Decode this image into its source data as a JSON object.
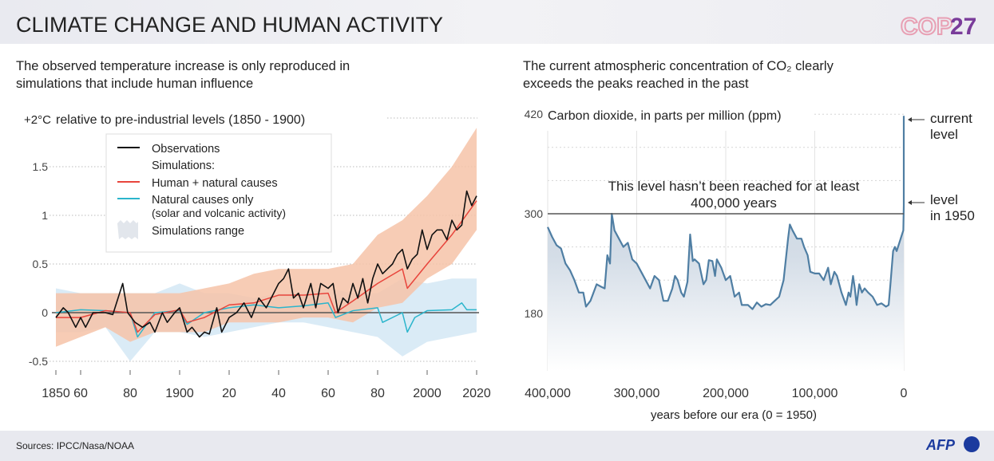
{
  "header": {
    "title": "CLIMATE CHANGE AND HUMAN ACTIVITY",
    "logo_text": "COP27",
    "logo_part1": "COP",
    "logo_part2": "27"
  },
  "footer": {
    "sources": "Sources: IPCC/Nasa/NOAA",
    "agency_logo": "AFP"
  },
  "colors": {
    "observations": "#111111",
    "human_natural": "#e8453c",
    "natural_only": "#2bb5cc",
    "human_natural_range": "#f6c3a8",
    "natural_range": "#d6e9f5",
    "co2_line": "#4f7ea3",
    "cop_purple": "#7a3c9a"
  },
  "chart_data": [
    {
      "type": "line",
      "subtitle_line1": "The observed temperature increase is only reproduced in",
      "subtitle_line2": "simulations that include human influence",
      "ylabel_unit": "+2°C",
      "ylabel": "relative to pre-industrial levels (1850 - 1900)",
      "xlim": [
        1850,
        2020
      ],
      "ylim": [
        -0.5,
        2
      ],
      "grid": true,
      "legend_position": "top-left",
      "x_ticks": [
        1850,
        1860,
        1880,
        1900,
        1920,
        1940,
        1960,
        1980,
        2000,
        2020
      ],
      "x_tick_labels": [
        "1850",
        "60",
        "80",
        "1900",
        "20",
        "40",
        "60",
        "80",
        "2000",
        "2020"
      ],
      "y_ticks": [
        -0.5,
        0,
        0.5,
        1,
        1.5
      ],
      "y_tick_labels": [
        "-0.5",
        "0",
        "0.5",
        "1",
        "1.5"
      ],
      "legend": {
        "observations": "Observations",
        "simulations_header": "Simulations:",
        "human_natural": "Human + natural causes",
        "natural_only": "Natural causes only",
        "natural_only_note": "(solar and volcanic activity)",
        "range": "Simulations range"
      },
      "series": [
        {
          "name": "Observations",
          "x": [
            1850,
            1853,
            1855,
            1858,
            1860,
            1862,
            1865,
            1868,
            1870,
            1873,
            1877,
            1879,
            1882,
            1885,
            1888,
            1890,
            1893,
            1895,
            1898,
            1900,
            1903,
            1905,
            1908,
            1910,
            1912,
            1915,
            1917,
            1920,
            1923,
            1926,
            1929,
            1932,
            1935,
            1938,
            1940,
            1942,
            1944,
            1946,
            1948,
            1950,
            1953,
            1955,
            1957,
            1960,
            1962,
            1964,
            1966,
            1968,
            1970,
            1972,
            1974,
            1976,
            1978,
            1980,
            1982,
            1984,
            1986,
            1988,
            1990,
            1992,
            1994,
            1996,
            1998,
            2000,
            2002,
            2004,
            2006,
            2008,
            2010,
            2012,
            2014,
            2016,
            2018,
            2020
          ],
          "values": [
            -0.05,
            0.05,
            0.0,
            -0.15,
            -0.05,
            -0.15,
            0.0,
            0.0,
            0.0,
            -0.02,
            0.3,
            0.0,
            -0.1,
            -0.15,
            -0.1,
            -0.2,
            0.0,
            -0.1,
            0.0,
            0.05,
            -0.2,
            -0.15,
            -0.25,
            -0.2,
            -0.22,
            0.05,
            -0.2,
            -0.05,
            0.0,
            0.1,
            -0.05,
            0.15,
            0.05,
            0.2,
            0.3,
            0.35,
            0.45,
            0.15,
            0.2,
            0.05,
            0.3,
            0.05,
            0.3,
            0.25,
            0.3,
            0.0,
            0.15,
            0.1,
            0.3,
            0.15,
            0.35,
            0.1,
            0.35,
            0.5,
            0.4,
            0.45,
            0.5,
            0.6,
            0.65,
            0.45,
            0.55,
            0.6,
            0.85,
            0.65,
            0.8,
            0.85,
            0.85,
            0.75,
            0.95,
            0.85,
            0.9,
            1.25,
            1.1,
            1.2
          ]
        },
        {
          "name": "Human + natural causes",
          "x": [
            1850,
            1860,
            1870,
            1880,
            1883,
            1890,
            1900,
            1903,
            1910,
            1920,
            1930,
            1940,
            1950,
            1960,
            1963,
            1970,
            1980,
            1990,
            1992,
            2000,
            2010,
            2020
          ],
          "values": [
            -0.05,
            -0.05,
            0.02,
            0.0,
            -0.2,
            -0.02,
            0.03,
            -0.1,
            -0.05,
            0.08,
            0.1,
            0.18,
            0.18,
            0.2,
            0.0,
            0.12,
            0.3,
            0.45,
            0.25,
            0.5,
            0.8,
            1.15
          ]
        },
        {
          "name": "Natural causes only",
          "x": [
            1850,
            1860,
            1870,
            1880,
            1883,
            1890,
            1900,
            1903,
            1910,
            1920,
            1930,
            1940,
            1950,
            1960,
            1963,
            1970,
            1980,
            1982,
            1990,
            1992,
            1995,
            2000,
            2010,
            2014,
            2016,
            2020
          ],
          "values": [
            0.0,
            0.03,
            0.02,
            0.0,
            -0.25,
            0.0,
            0.02,
            -0.12,
            0.0,
            0.05,
            0.08,
            0.05,
            0.07,
            0.1,
            -0.05,
            0.02,
            0.05,
            -0.1,
            0.0,
            -0.2,
            -0.05,
            0.02,
            0.03,
            0.1,
            0.03,
            0.03
          ]
        }
      ],
      "ranges": {
        "x": [
          1850,
          1860,
          1870,
          1880,
          1890,
          1900,
          1910,
          1920,
          1930,
          1940,
          1950,
          1960,
          1970,
          1980,
          1990,
          2000,
          2010,
          2020
        ],
        "human_natural_upper": [
          0.2,
          0.2,
          0.2,
          0.2,
          0.2,
          0.2,
          0.25,
          0.3,
          0.4,
          0.45,
          0.45,
          0.45,
          0.5,
          0.8,
          0.95,
          1.2,
          1.5,
          1.9
        ],
        "human_natural_lower": [
          -0.35,
          -0.25,
          -0.15,
          -0.3,
          -0.2,
          -0.2,
          -0.2,
          -0.1,
          -0.1,
          -0.1,
          -0.05,
          -0.05,
          -0.1,
          0.05,
          0.1,
          0.35,
          0.5,
          0.85
        ],
        "natural_upper": [
          0.25,
          0.2,
          0.2,
          0.2,
          0.2,
          0.3,
          0.2,
          0.2,
          0.15,
          0.2,
          0.2,
          0.25,
          0.2,
          0.2,
          0.35,
          0.3,
          0.35,
          0.35
        ],
        "natural_lower": [
          -0.2,
          -0.2,
          -0.15,
          -0.5,
          -0.2,
          -0.2,
          -0.25,
          -0.2,
          -0.15,
          -0.1,
          -0.1,
          -0.15,
          -0.2,
          -0.25,
          -0.45,
          -0.3,
          -0.25,
          -0.2
        ]
      }
    },
    {
      "type": "area",
      "subtitle_line1": "The current atmospheric concentration of  CO₂ clearly",
      "subtitle_line2": "exceeds the peaks reached in the past",
      "ylabel": "Carbon dioxide, in parts per million (ppm)",
      "xlabel": "years before our era (0 = 1950)",
      "xlim": [
        400000,
        0
      ],
      "ylim": [
        110,
        420
      ],
      "grid": true,
      "x_ticks": [
        400000,
        300000,
        200000,
        100000,
        0
      ],
      "x_tick_labels": [
        "400,000",
        "300,000",
        "200,000",
        "100,000",
        "0"
      ],
      "y_ticks": [
        180,
        300,
        420
      ],
      "y_tick_labels": [
        "180",
        "300",
        "420"
      ],
      "annotations": {
        "threshold_line1": "This level hasn’t been reached for at least",
        "threshold_line2": "400,000 years",
        "threshold_value": 300,
        "current_line1": "current",
        "current_line2": "level",
        "level1950_line1": "level",
        "level1950_line2": "in 1950"
      },
      "series": [
        {
          "x": [
            400000,
            395000,
            390000,
            385000,
            380000,
            375000,
            370000,
            365000,
            360000,
            357000,
            352000,
            345000,
            340000,
            336000,
            333000,
            330000,
            328000,
            325000,
            320000,
            315000,
            310000,
            305000,
            300000,
            295000,
            290000,
            285000,
            280000,
            275000,
            270000,
            265000,
            260000,
            257000,
            254000,
            250000,
            247000,
            243000,
            240000,
            237000,
            235000,
            230000,
            227000,
            225000,
            222000,
            219000,
            215000,
            212000,
            210000,
            205000,
            200000,
            195000,
            190000,
            185000,
            182000,
            175000,
            170000,
            165000,
            160000,
            155000,
            150000,
            145000,
            140000,
            135000,
            130000,
            128000,
            125000,
            120000,
            115000,
            112000,
            108000,
            105000,
            100000,
            95000,
            90000,
            85000,
            82000,
            78000,
            75000,
            70000,
            65000,
            62000,
            60000,
            57000,
            55000,
            53000,
            50000,
            47000,
            44000,
            40000,
            35000,
            30000,
            25000,
            20000,
            17000,
            15000,
            12000,
            10000,
            8000,
            5000,
            2000,
            500,
            0,
            0
          ],
          "values": [
            284,
            272,
            262,
            258,
            240,
            232,
            220,
            205,
            205,
            188,
            195,
            215,
            212,
            210,
            250,
            240,
            300,
            280,
            270,
            260,
            265,
            245,
            240,
            230,
            220,
            210,
            225,
            220,
            195,
            195,
            210,
            225,
            220,
            205,
            200,
            218,
            275,
            243,
            245,
            240,
            225,
            215,
            220,
            244,
            243,
            225,
            245,
            235,
            220,
            225,
            200,
            205,
            190,
            190,
            185,
            193,
            188,
            191,
            190,
            195,
            200,
            220,
            270,
            287,
            280,
            270,
            270,
            260,
            250,
            230,
            228,
            228,
            220,
            235,
            215,
            230,
            225,
            205,
            190,
            205,
            200,
            225,
            210,
            190,
            215,
            205,
            210,
            205,
            200,
            190,
            192,
            188,
            190,
            215,
            255,
            260,
            255,
            265,
            275,
            280,
            310,
            418
          ]
        }
      ]
    }
  ]
}
